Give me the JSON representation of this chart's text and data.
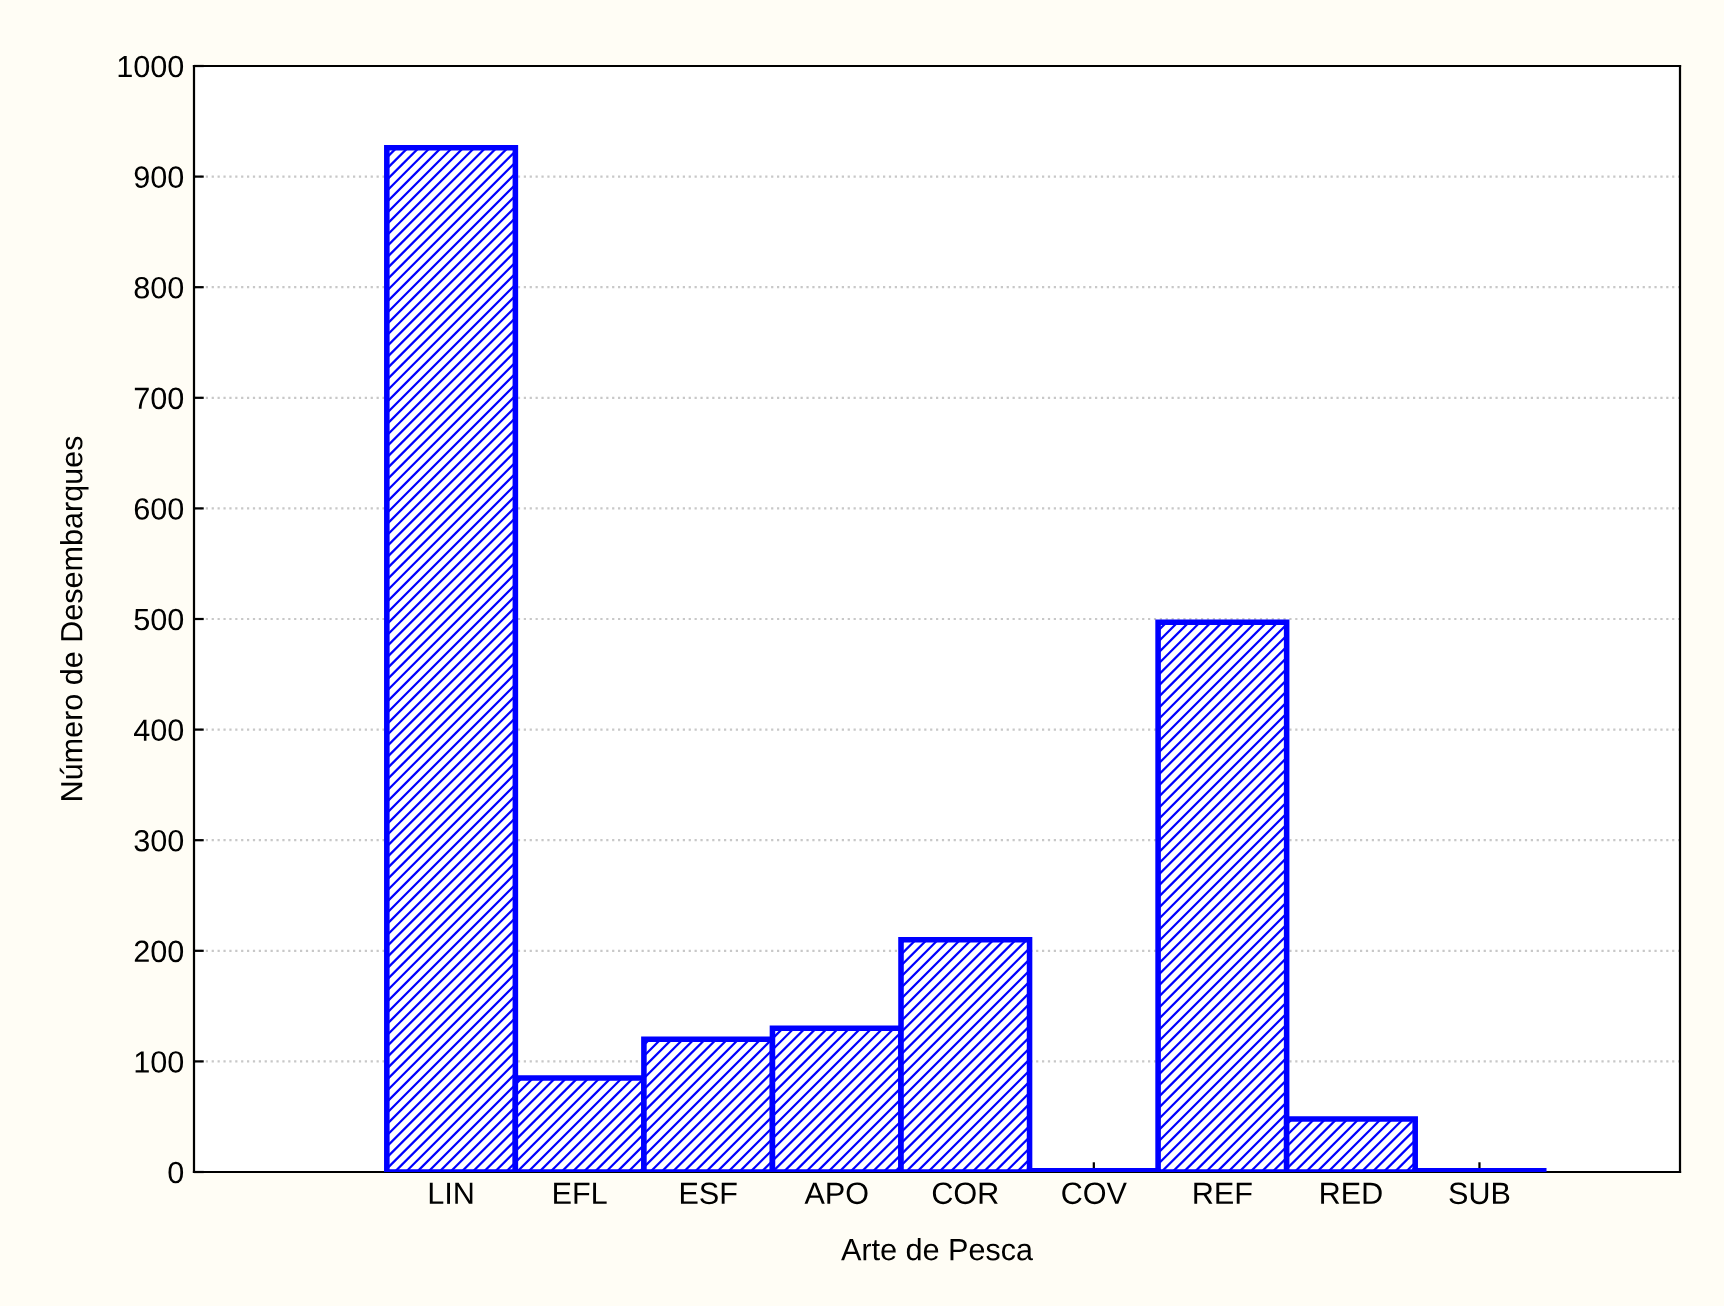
{
  "chart_data": {
    "type": "bar",
    "xlabel": "Arte de Pesca",
    "ylabel": "Número de Desembarques",
    "categories": [
      "LIN",
      "EFL",
      "ESF",
      "APO",
      "COR",
      "COV",
      "REF",
      "RED",
      "SUB"
    ],
    "values": [
      926,
      85,
      120,
      130,
      210,
      1,
      497,
      48,
      1
    ],
    "color": "#0000ff",
    "ylim": [
      0,
      1000
    ],
    "yticks": [
      0,
      100,
      200,
      300,
      400,
      500,
      600,
      700,
      800,
      900,
      1000
    ],
    "grid": "y"
  }
}
